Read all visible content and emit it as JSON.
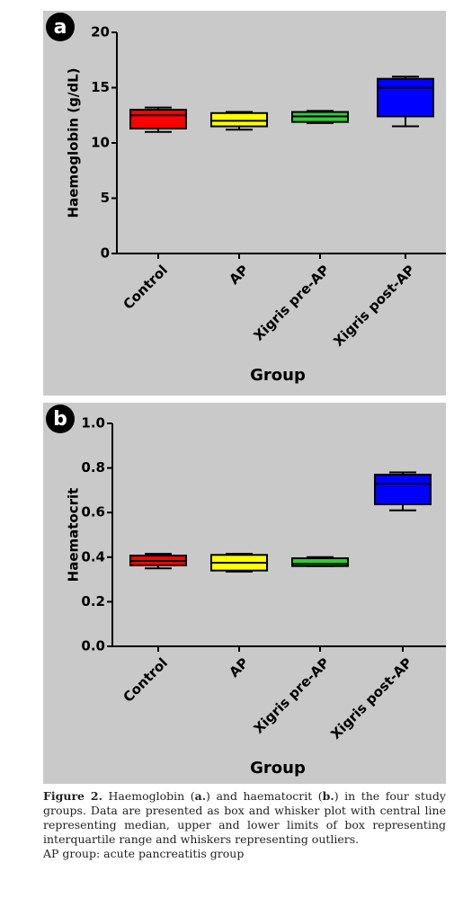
{
  "chart_data": [
    {
      "type": "box",
      "panel": "a",
      "ylabel": "Haemoglobin (g/dL)",
      "xlabel": "Group",
      "categories": [
        "Control",
        "AP",
        "Xigris pre-AP",
        "Xigris post-AP"
      ],
      "colors": [
        "#ff0000",
        "#ffff00",
        "#33cc33",
        "#0000ff"
      ],
      "min": [
        11.0,
        11.2,
        11.8,
        11.5
      ],
      "q1": [
        11.3,
        11.5,
        11.9,
        12.4
      ],
      "median": [
        12.5,
        12.0,
        12.4,
        15.0
      ],
      "q3": [
        13.0,
        12.7,
        12.8,
        15.8
      ],
      "max": [
        13.2,
        12.8,
        12.9,
        16.0
      ],
      "ylim": [
        0,
        20
      ],
      "yticks": [
        0,
        5,
        10,
        15,
        20
      ]
    },
    {
      "type": "box",
      "panel": "b",
      "ylabel": "Haematocrit",
      "xlabel": "Group",
      "categories": [
        "Control",
        "AP",
        "Xigris pre-AP",
        "Xigris post-AP"
      ],
      "colors": [
        "#ff0000",
        "#ffff00",
        "#33cc33",
        "#0000ff"
      ],
      "min": [
        0.35,
        0.335,
        0.36,
        0.61
      ],
      "q1": [
        0.363,
        0.34,
        0.36,
        0.637
      ],
      "median": [
        0.383,
        0.375,
        0.37,
        0.73
      ],
      "q3": [
        0.407,
        0.41,
        0.395,
        0.77
      ],
      "max": [
        0.415,
        0.415,
        0.4,
        0.78
      ],
      "ylim": [
        0,
        1
      ],
      "yticks": [
        {
          "value": 0,
          "label": "0.0"
        },
        0.2,
        0.4,
        0.6,
        0.8,
        {
          "value": 1,
          "label": "1.0"
        }
      ]
    }
  ],
  "caption": [
    {
      "text": "Figure 2.",
      "bold": true
    },
    {
      "text": " Haemoglobin ("
    },
    {
      "text": "a.",
      "bold": true
    },
    {
      "text": ") and haematocrit ("
    },
    {
      "text": "b.",
      "bold": true
    },
    {
      "text": ") in the four study groups. Data are presented as box and whisker plot with central line representing median, upper and lower limits of box representing interquartile range and whiskers representing outliers."
    }
  ],
  "note": "AP group: acute pancreatitis group"
}
